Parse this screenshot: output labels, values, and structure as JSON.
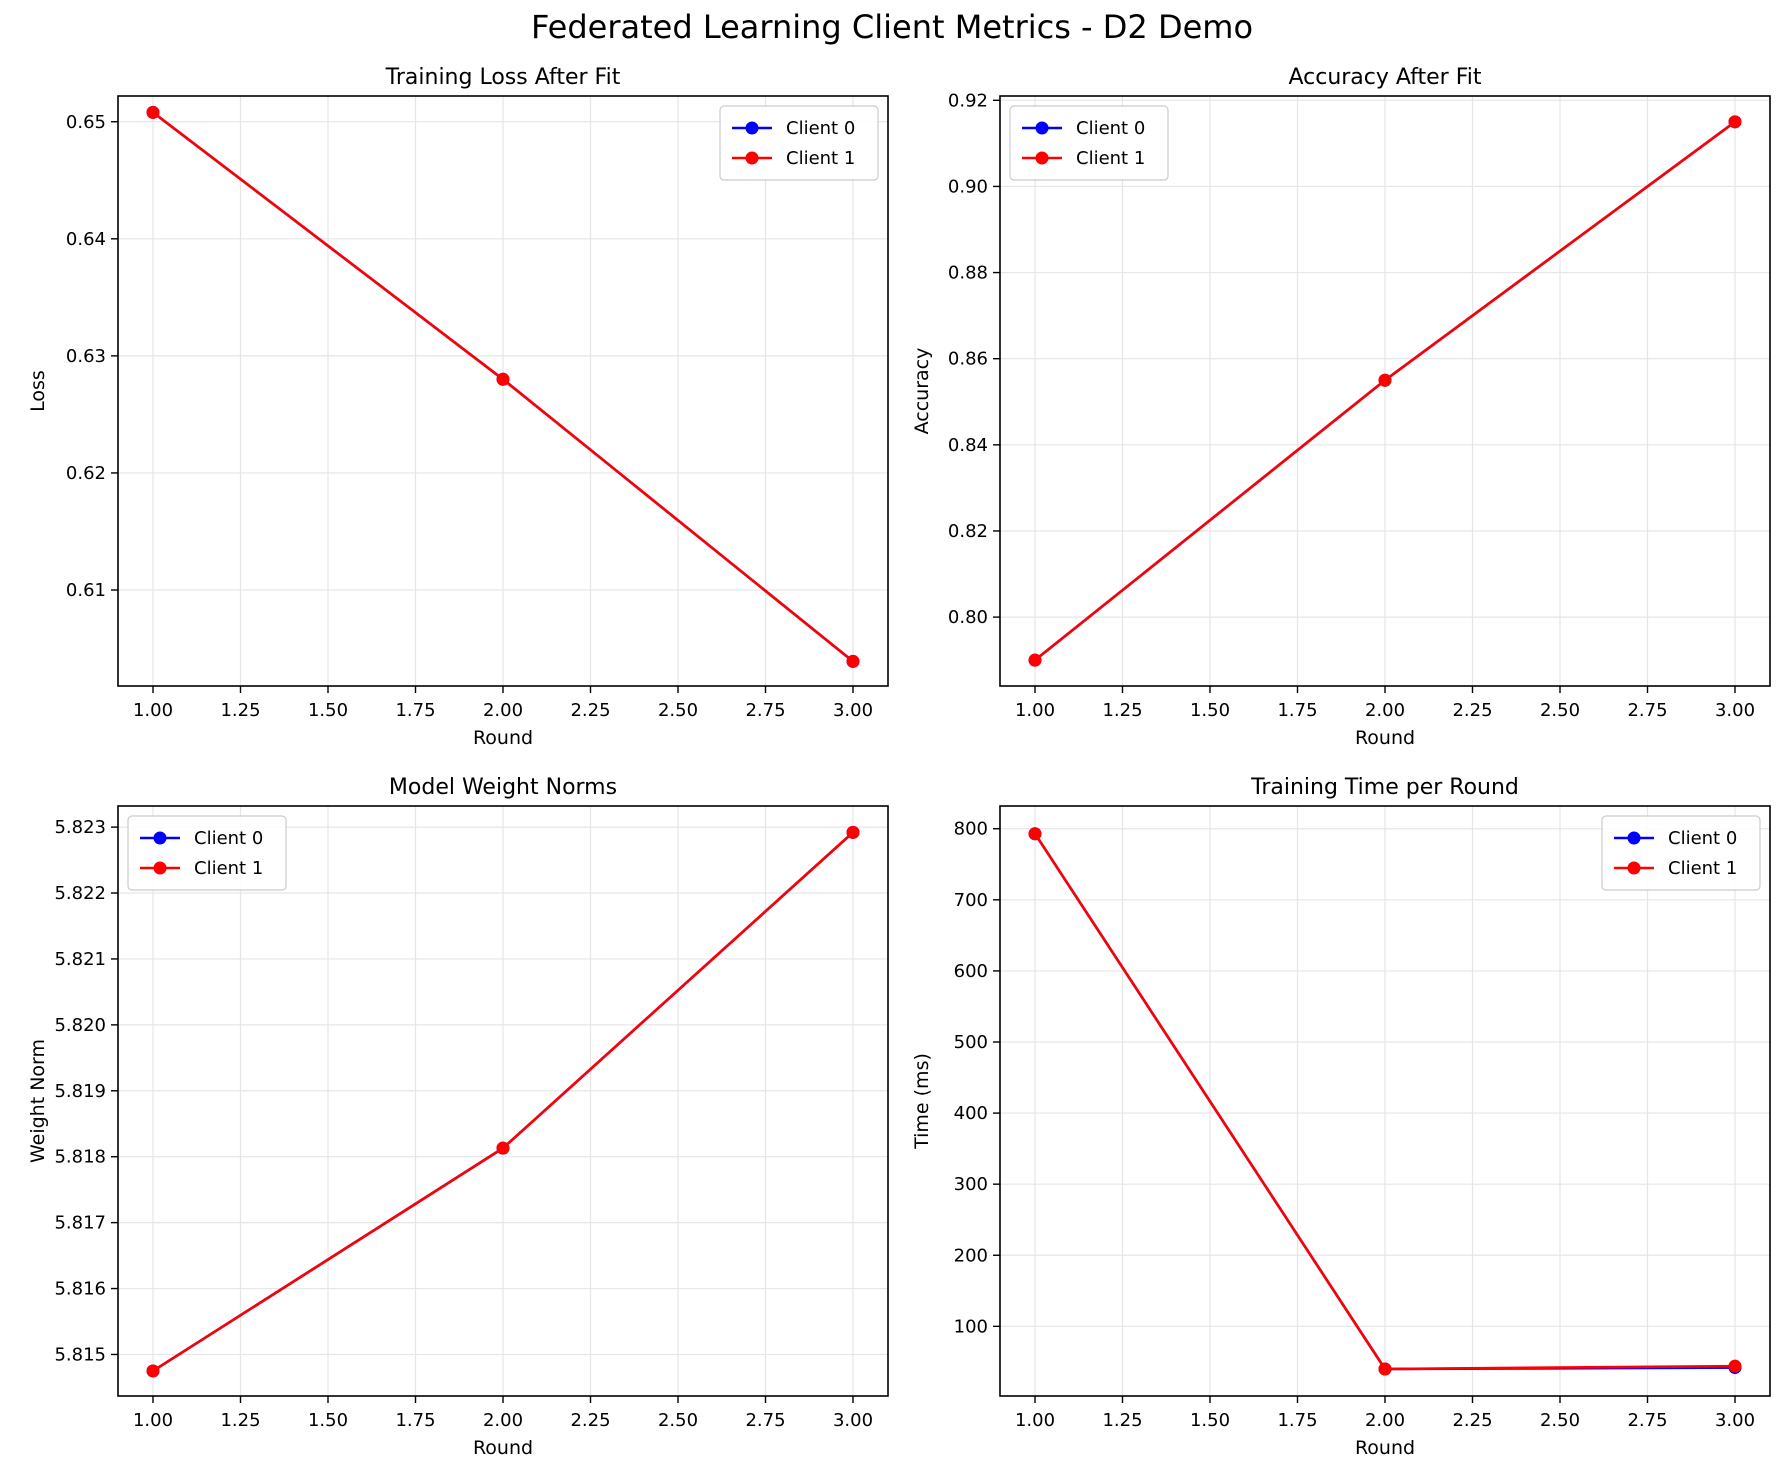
{
  "figure_title": "Federated Learning Client Metrics - D2 Demo",
  "colors": {
    "client0": "#0000ff",
    "client1": "#ff0000",
    "grid": "#e6e6e6",
    "axes": "#000000"
  },
  "legend_labels": [
    "Client 0",
    "Client 1"
  ],
  "chart_data": [
    {
      "type": "line",
      "title": "Training Loss After Fit",
      "xlabel": "Round",
      "ylabel": "Loss",
      "xlim": [
        0.9,
        3.1
      ],
      "ylim": [
        0.6018,
        0.6522
      ],
      "xticks": [
        1.0,
        1.25,
        1.5,
        1.75,
        2.0,
        2.25,
        2.5,
        2.75,
        3.0
      ],
      "xtick_labels": [
        "1.00",
        "1.25",
        "1.50",
        "1.75",
        "2.00",
        "2.25",
        "2.50",
        "2.75",
        "3.00"
      ],
      "yticks": [
        0.61,
        0.62,
        0.63,
        0.64,
        0.65
      ],
      "ytick_labels": [
        "0.61",
        "0.62",
        "0.63",
        "0.64",
        "0.65"
      ],
      "grid": true,
      "legend_position": "top-right",
      "x": [
        1,
        2,
        3
      ],
      "series": [
        {
          "name": "Client 0",
          "color": "#0000ff",
          "values": [
            0.6508,
            0.628,
            0.6039
          ]
        },
        {
          "name": "Client 1",
          "color": "#ff0000",
          "values": [
            0.6508,
            0.628,
            0.6039
          ]
        }
      ]
    },
    {
      "type": "line",
      "title": "Accuracy After Fit",
      "xlabel": "Round",
      "ylabel": "Accuracy",
      "xlim": [
        0.9,
        3.1
      ],
      "ylim": [
        0.784,
        0.921
      ],
      "xticks": [
        1.0,
        1.25,
        1.5,
        1.75,
        2.0,
        2.25,
        2.5,
        2.75,
        3.0
      ],
      "xtick_labels": [
        "1.00",
        "1.25",
        "1.50",
        "1.75",
        "2.00",
        "2.25",
        "2.50",
        "2.75",
        "3.00"
      ],
      "yticks": [
        0.8,
        0.82,
        0.84,
        0.86,
        0.88,
        0.9,
        0.92
      ],
      "ytick_labels": [
        "0.80",
        "0.82",
        "0.84",
        "0.86",
        "0.88",
        "0.90",
        "0.92"
      ],
      "grid": true,
      "legend_position": "top-left",
      "x": [
        1,
        2,
        3
      ],
      "series": [
        {
          "name": "Client 0",
          "color": "#0000ff",
          "values": [
            0.79,
            0.855,
            0.915
          ]
        },
        {
          "name": "Client 1",
          "color": "#ff0000",
          "values": [
            0.79,
            0.855,
            0.915
          ]
        }
      ]
    },
    {
      "type": "line",
      "title": "Model Weight Norms",
      "xlabel": "Round",
      "ylabel": "Weight Norm",
      "xlim": [
        0.9,
        3.1
      ],
      "ylim": [
        5.81437,
        5.82332
      ],
      "xticks": [
        1.0,
        1.25,
        1.5,
        1.75,
        2.0,
        2.25,
        2.5,
        2.75,
        3.0
      ],
      "xtick_labels": [
        "1.00",
        "1.25",
        "1.50",
        "1.75",
        "2.00",
        "2.25",
        "2.50",
        "2.75",
        "3.00"
      ],
      "yticks": [
        5.815,
        5.816,
        5.817,
        5.818,
        5.819,
        5.82,
        5.821,
        5.822,
        5.823
      ],
      "ytick_labels": [
        "5.815",
        "5.816",
        "5.817",
        "5.818",
        "5.819",
        "5.820",
        "5.821",
        "5.822",
        "5.823"
      ],
      "grid": true,
      "legend_position": "top-left",
      "x": [
        1,
        2,
        3
      ],
      "series": [
        {
          "name": "Client 0",
          "color": "#0000ff",
          "values": [
            5.81475,
            5.81813,
            5.82292
          ]
        },
        {
          "name": "Client 1",
          "color": "#ff0000",
          "values": [
            5.81475,
            5.81813,
            5.82292
          ]
        }
      ]
    },
    {
      "type": "line",
      "title": "Training Time per Round",
      "xlabel": "Round",
      "ylabel": "Time (ms)",
      "xlim": [
        0.9,
        3.1
      ],
      "ylim": [
        2,
        832
      ],
      "xticks": [
        1.0,
        1.25,
        1.5,
        1.75,
        2.0,
        2.25,
        2.5,
        2.75,
        3.0
      ],
      "xtick_labels": [
        "1.00",
        "1.25",
        "1.50",
        "1.75",
        "2.00",
        "2.25",
        "2.50",
        "2.75",
        "3.00"
      ],
      "yticks": [
        100,
        200,
        300,
        400,
        500,
        600,
        700,
        800
      ],
      "ytick_labels": [
        "100",
        "200",
        "300",
        "400",
        "500",
        "600",
        "700",
        "800"
      ],
      "grid": true,
      "legend_position": "top-right",
      "x": [
        1,
        2,
        3
      ],
      "series": [
        {
          "name": "Client 0",
          "color": "#0000ff",
          "values": [
            793,
            40,
            42
          ]
        },
        {
          "name": "Client 1",
          "color": "#ff0000",
          "values": [
            793,
            40,
            44
          ]
        }
      ]
    }
  ]
}
